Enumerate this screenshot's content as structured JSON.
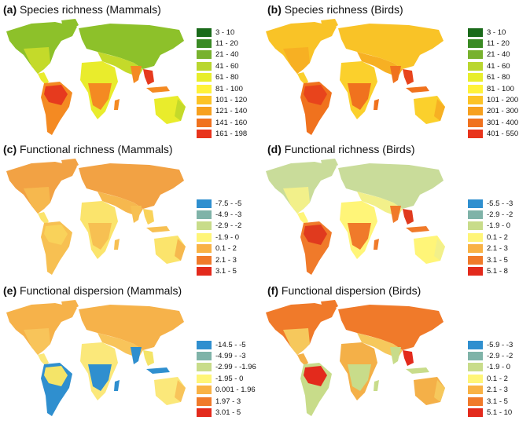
{
  "panels": [
    {
      "letter": "(a)",
      "title": "Species richness (Mammals)",
      "legend": [
        {
          "label": "3 - 10",
          "color": "#1a6a1a"
        },
        {
          "label": "11 - 20",
          "color": "#3a8a24"
        },
        {
          "label": "21 - 40",
          "color": "#78b22e"
        },
        {
          "label": "41 - 60",
          "color": "#b9d62e"
        },
        {
          "label": "61 - 80",
          "color": "#e8ee2c"
        },
        {
          "label": "81 - 100",
          "color": "#fff23a"
        },
        {
          "label": "101 - 120",
          "color": "#fcc326"
        },
        {
          "label": "121 - 140",
          "color": "#f7a01e"
        },
        {
          "label": "141 - 160",
          "color": "#f0721e"
        },
        {
          "label": "161 - 198",
          "color": "#e8341c"
        }
      ],
      "palette": {
        "north": "#8dc12a",
        "temperate": "#c4da2a",
        "tropic": "#f48a22",
        "hot": "#e63a1e",
        "desert": "#e9ec2c"
      }
    },
    {
      "letter": "(b)",
      "title": "Species richness (Birds)",
      "legend": [
        {
          "label": "3 - 10",
          "color": "#1a6a1a"
        },
        {
          "label": "11 - 20",
          "color": "#3a8a24"
        },
        {
          "label": "21 - 40",
          "color": "#78b22e"
        },
        {
          "label": "41 - 60",
          "color": "#b9d62e"
        },
        {
          "label": "61 - 80",
          "color": "#e8ee2c"
        },
        {
          "label": "81 - 100",
          "color": "#fff23a"
        },
        {
          "label": "101 - 200",
          "color": "#fcc326"
        },
        {
          "label": "201 - 300",
          "color": "#f7a01e"
        },
        {
          "label": "301 - 400",
          "color": "#f0721e"
        },
        {
          "label": "401 - 550",
          "color": "#e8341c"
        }
      ],
      "palette": {
        "north": "#f9c327",
        "temperate": "#f7b023",
        "tropic": "#f0721e",
        "hot": "#e8441c",
        "desert": "#fbd02c"
      }
    },
    {
      "letter": "(c)",
      "title": "Functional richness (Mammals)",
      "legend": [
        {
          "label": "-7.5 - -5",
          "color": "#2f8fcf"
        },
        {
          "label": "-4.9 - -3",
          "color": "#7fb3a8"
        },
        {
          "label": "-2.9 - -2",
          "color": "#c8dc8a"
        },
        {
          "label": "-1.9 - 0",
          "color": "#fff578"
        },
        {
          "label": "0.1 - 2",
          "color": "#f9b245"
        },
        {
          "label": "2.1 - 3",
          "color": "#f07a2a"
        },
        {
          "label": "3.1 - 5",
          "color": "#e32a1c"
        }
      ],
      "palette": {
        "north": "#f2a244",
        "temperate": "#f6b84e",
        "tropic": "#f7c052",
        "hot": "#f9d25a",
        "desert": "#fbe46c"
      }
    },
    {
      "letter": "(d)",
      "title": "Functional richness (Birds)",
      "legend": [
        {
          "label": "-5.5 - -3",
          "color": "#2f8fcf"
        },
        {
          "label": "-2.9 - -2",
          "color": "#7fb3a8"
        },
        {
          "label": "-1.9 - 0",
          "color": "#c8dc8a"
        },
        {
          "label": "0.1 - 2",
          "color": "#fff578"
        },
        {
          "label": "2.1 - 3",
          "color": "#f9b245"
        },
        {
          "label": "3.1 - 5",
          "color": "#f07a2a"
        },
        {
          "label": "5.1 - 8",
          "color": "#e32a1c"
        }
      ],
      "palette": {
        "north": "#c9dc9a",
        "temperate": "#f2f08a",
        "tropic": "#f07a2a",
        "hot": "#e03a1e",
        "desert": "#fff578"
      }
    },
    {
      "letter": "(e)",
      "title": "Functional dispersion (Mammals)",
      "legend": [
        {
          "label": "-14.5 - -5",
          "color": "#2f8fcf"
        },
        {
          "label": "-4.99 - -3",
          "color": "#7fb3a8"
        },
        {
          "label": "-2.99 - -1.96",
          "color": "#c8dc8a"
        },
        {
          "label": "-1.95 - 0",
          "color": "#fff578"
        },
        {
          "label": "0.001 - 1.96",
          "color": "#f9b245"
        },
        {
          "label": "1.97 - 3",
          "color": "#f07a2a"
        },
        {
          "label": "3.01 - 5",
          "color": "#e32a1c"
        }
      ],
      "palette": {
        "north": "#f6b24a",
        "temperate": "#f8c45a",
        "tropic": "#2f8fcf",
        "hot": "#f4e468",
        "desert": "#fbe87a"
      }
    },
    {
      "letter": "(f)",
      "title": "Functional dispersion (Birds)",
      "legend": [
        {
          "label": "-5.9 - -3",
          "color": "#2f8fcf"
        },
        {
          "label": "-2.9 - -2",
          "color": "#7fb3a8"
        },
        {
          "label": "-1.9 - 0",
          "color": "#c8dc8a"
        },
        {
          "label": "0.1 - 2",
          "color": "#fff578"
        },
        {
          "label": "2.1 - 3",
          "color": "#f9b245"
        },
        {
          "label": "3.1 - 5",
          "color": "#f07a2a"
        },
        {
          "label": "5.1 - 10",
          "color": "#e32a1c"
        }
      ],
      "palette": {
        "north": "#f07a2a",
        "temperate": "#f6c85c",
        "tropic": "#c8dc8a",
        "hot": "#e32a1c",
        "desert": "#f4b048"
      }
    }
  ]
}
